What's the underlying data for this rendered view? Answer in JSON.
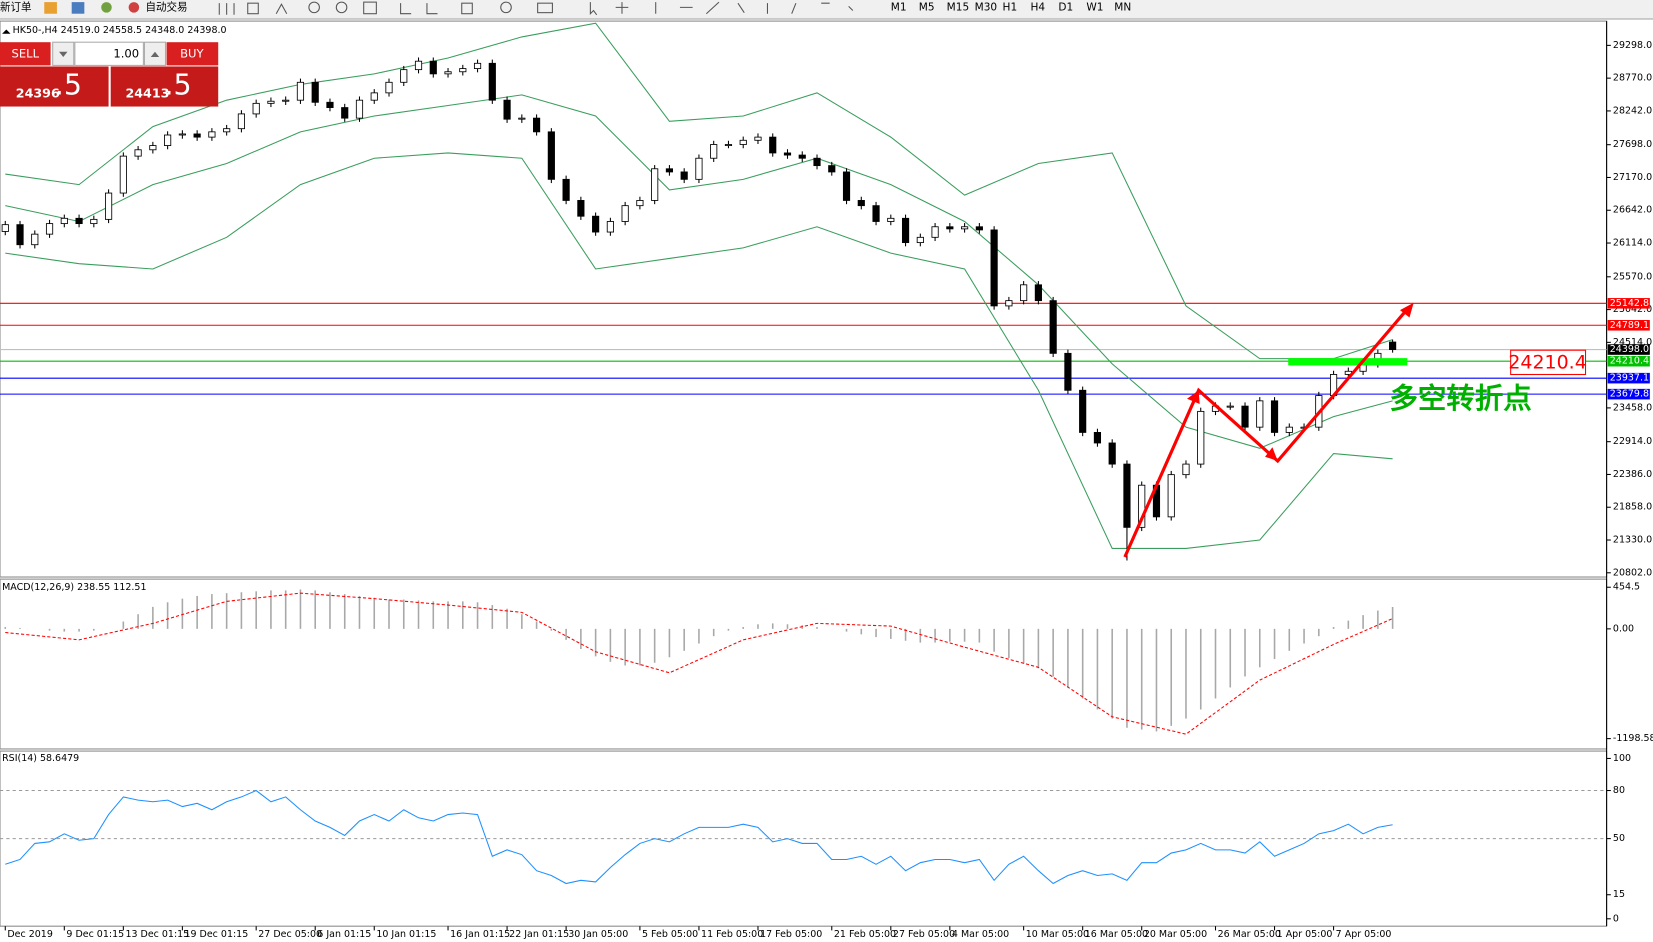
{
  "toolbar": {
    "items": [
      "新订单",
      "自动交易"
    ],
    "timeframes": [
      "M1",
      "M5",
      "M15",
      "M30",
      "H1",
      "H4",
      "D1",
      "W1",
      "MN"
    ]
  },
  "trade_panel": {
    "sell": "SELL",
    "buy": "BUY",
    "lot": "1.00",
    "sell_price": "24396",
    "sell_digits": ".5",
    "buy_price": "24413",
    "buy_digits": ".5"
  },
  "chart_data": [
    {
      "type": "candlestick",
      "title": "HK50-,H4 24519.0 24558.5 24348.0 24398.0",
      "categories": [
        "Dec 2019",
        null,
        null,
        null,
        "9 Dec 01:15",
        null,
        null,
        null,
        "13 Dec 01:15",
        null,
        null,
        null,
        "19 Dec 01:15",
        null,
        null,
        null,
        null,
        "27 Dec 05:00",
        null,
        null,
        null,
        "6 Jan 01:15",
        null,
        null,
        null,
        "10 Jan 01:15",
        null,
        null,
        null,
        null,
        "16 Jan 01:15",
        null,
        null,
        null,
        "22 Jan 01:15",
        null,
        null,
        null,
        "30 Jan 05:00",
        null,
        null,
        null,
        null,
        "5 Feb 05:00",
        null,
        null,
        null,
        "11 Feb 05:00",
        null,
        null,
        null,
        "17 Feb 05:00",
        null,
        null,
        null,
        null,
        "21 Feb 05:00",
        null,
        null,
        null,
        "27 Feb 05:00",
        null,
        null,
        null,
        "4 Mar 05:00",
        null,
        null,
        null,
        null,
        "10 Mar 05:00",
        null,
        null,
        null,
        "16 Mar 05:00",
        null,
        null,
        null,
        "20 Mar 05:00",
        null,
        null,
        null,
        null,
        "26 Mar 05:00",
        null,
        null,
        null,
        "1 Apr 05:00",
        null,
        null,
        null,
        "7 Apr 05:00",
        null,
        null,
        null,
        null
      ],
      "open": [
        26300,
        26410,
        26087,
        26257,
        26427,
        26512,
        26427,
        26495,
        26919,
        27514,
        27616,
        27684,
        27854,
        27871,
        27820,
        27905,
        27956,
        28194,
        28364,
        28398,
        28415,
        28703,
        28381,
        28296,
        28126,
        28415,
        28533,
        28703,
        28907,
        29043,
        28839,
        28873,
        28924,
        29009,
        28415,
        28109,
        28126,
        27905,
        27140,
        26800,
        26546,
        26291,
        26461,
        26716,
        26800,
        27310,
        27259,
        27140,
        27480,
        27701,
        27701,
        27769,
        27820,
        27565,
        27531,
        27480,
        27361,
        27259,
        26800,
        26716,
        26461,
        26512,
        26121,
        26206,
        26376,
        26342,
        26376,
        26325,
        25101,
        25186,
        25441,
        25186,
        24337,
        23742,
        23063,
        22893,
        22553,
        21534,
        22213,
        21703,
        22383,
        22553,
        23402,
        23487,
        23487,
        23148,
        23572,
        23063,
        23148,
        23148,
        23657,
        23997,
        24048,
        24167,
        24519
      ],
      "high": [
        26470,
        26470,
        26317,
        26487,
        26572,
        26572,
        26555,
        26979,
        27574,
        27676,
        27744,
        27914,
        27931,
        27931,
        27965,
        28016,
        28254,
        28424,
        28458,
        28475,
        28763,
        28763,
        28441,
        28356,
        28475,
        28593,
        28763,
        28967,
        29103,
        29103,
        28933,
        28984,
        29069,
        29069,
        28475,
        28186,
        28186,
        27965,
        27200,
        26860,
        26606,
        26521,
        26776,
        26860,
        27370,
        27370,
        27319,
        27540,
        27761,
        27761,
        27829,
        27880,
        27880,
        27625,
        27591,
        27540,
        27421,
        27319,
        26860,
        26776,
        26572,
        26572,
        26266,
        26436,
        26436,
        26436,
        26436,
        26385,
        25246,
        25501,
        25501,
        25246,
        24397,
        23802,
        23123,
        22953,
        22613,
        22273,
        22273,
        22443,
        22613,
        23462,
        23547,
        23547,
        23547,
        23632,
        23632,
        23208,
        23208,
        23717,
        24057,
        24108,
        24227,
        24397,
        24558.5
      ],
      "low": [
        26240,
        26027,
        26027,
        26197,
        26367,
        26367,
        26367,
        26435,
        26859,
        27454,
        27556,
        27624,
        27794,
        27760,
        27760,
        27845,
        27896,
        28134,
        28304,
        28338,
        28355,
        28321,
        28236,
        28066,
        28066,
        28355,
        28473,
        28643,
        28847,
        28779,
        28779,
        28813,
        28864,
        28355,
        28049,
        28049,
        27845,
        27080,
        26740,
        26486,
        26231,
        26231,
        26401,
        26656,
        26740,
        27199,
        27080,
        27080,
        27420,
        27641,
        27641,
        27709,
        27505,
        27471,
        27420,
        27301,
        27199,
        26740,
        26656,
        26401,
        26401,
        26061,
        26061,
        26146,
        26282,
        26282,
        26265,
        25041,
        25041,
        25126,
        25126,
        24277,
        23682,
        23003,
        22833,
        22493,
        21000,
        21474,
        21643,
        21643,
        22323,
        22493,
        23342,
        23427,
        23088,
        23088,
        23003,
        23003,
        23088,
        23088,
        23597,
        23937,
        23988,
        24107,
        24348
      ],
      "close": [
        26410,
        26087,
        26257,
        26427,
        26512,
        26427,
        26495,
        26919,
        27514,
        27616,
        27684,
        27854,
        27871,
        27820,
        27905,
        27956,
        28194,
        28364,
        28398,
        28415,
        28703,
        28381,
        28296,
        28126,
        28415,
        28533,
        28703,
        28907,
        29043,
        28839,
        28873,
        28924,
        29009,
        28415,
        28109,
        28126,
        27905,
        27140,
        26800,
        26546,
        26291,
        26461,
        26716,
        26800,
        27310,
        27259,
        27140,
        27480,
        27701,
        27701,
        27769,
        27820,
        27565,
        27531,
        27480,
        27361,
        27259,
        26800,
        26716,
        26461,
        26512,
        26121,
        26206,
        26376,
        26342,
        26376,
        26325,
        25101,
        25186,
        25441,
        25186,
        24337,
        23742,
        23063,
        22893,
        22553,
        21534,
        22213,
        21703,
        22383,
        22553,
        23402,
        23487,
        23487,
        23148,
        23572,
        23063,
        23148,
        23148,
        23657,
        23997,
        24048,
        24167,
        24337,
        24398
      ],
      "up_color": "#ffffff",
      "down_color": "#000000",
      "bands": [
        {
          "color": "#3a9d5d",
          "x": [
            0,
            5,
            10,
            15,
            20,
            25,
            30,
            35,
            40,
            45,
            50,
            55,
            60,
            65,
            70,
            75,
            80,
            85,
            90,
            94
          ],
          "values": [
            27225,
            27055,
            27990,
            28415,
            28669,
            28839,
            29094,
            29434,
            29655,
            28075,
            28160,
            28533,
            27820,
            26886,
            27395,
            27565,
            25101,
            24252,
            24252,
            24558
          ]
        },
        {
          "color": "#3a9d5d",
          "x": [
            0,
            5,
            10,
            15,
            20,
            25,
            30,
            35,
            40,
            45,
            50,
            55,
            60,
            65,
            70,
            75,
            80,
            85,
            90,
            94
          ],
          "values": [
            26716,
            26461,
            27055,
            27395,
            27905,
            28160,
            28330,
            28500,
            28160,
            26970,
            27140,
            27480,
            27055,
            26461,
            25441,
            24167,
            23148,
            22808,
            23317,
            23572
          ]
        },
        {
          "color": "#3a9d5d",
          "x": [
            0,
            5,
            10,
            15,
            20,
            25,
            30,
            35,
            40,
            45,
            50,
            55,
            60,
            65,
            70,
            75,
            80,
            85,
            90,
            94
          ],
          "values": [
            25951,
            25781,
            25696,
            26206,
            27055,
            27480,
            27565,
            27480,
            25696,
            25866,
            26036,
            26376,
            25951,
            25696,
            23742,
            21194,
            21194,
            21330,
            22723,
            22638
          ]
        }
      ],
      "levels": [
        {
          "value": 25142.8,
          "color": "#ff0000"
        },
        {
          "value": 24789.1,
          "color": "#ff0000"
        },
        {
          "value": 24398,
          "label": "24398.0",
          "color": "#000000",
          "line_color": "#c0c0c0"
        },
        {
          "value": 24210.4,
          "color": "#00c000"
        },
        {
          "value": 23937.1,
          "color": "#0000ff"
        },
        {
          "value": 23679.8,
          "color": "#0000ff"
        }
      ],
      "annotations": [
        "24210.4",
        "多空转折点"
      ],
      "ylim": [
        20734,
        29655
      ],
      "yticks": [
        {
          "value": 29298,
          "label": "29298.0"
        },
        {
          "value": 28770,
          "label": "28770.0"
        },
        {
          "value": 28242,
          "label": "28242.0"
        },
        {
          "value": 27698,
          "label": "27698.0"
        },
        {
          "value": 27170,
          "label": "27170.0"
        },
        {
          "value": 26642,
          "label": "26642.0"
        },
        {
          "value": 26114,
          "label": "26114.0"
        },
        {
          "value": 25570,
          "label": "25570.0"
        },
        {
          "value": 25042,
          "label": "25042.0"
        },
        {
          "value": 24514,
          "label": "24514.0"
        },
        {
          "value": 23458,
          "label": "23458.0"
        },
        {
          "value": 22914,
          "label": "22914.0"
        },
        {
          "value": 22386,
          "label": "22386.0"
        },
        {
          "value": 21858,
          "label": "21858.0"
        },
        {
          "value": 21330,
          "label": "21330.0"
        },
        {
          "value": 20802,
          "label": "20802.0"
        }
      ]
    },
    {
      "type": "macd",
      "title": "MACD(12,26,9) 238.55 112.51",
      "histogram": {
        "color": "#a8a8a8",
        "values": [
          20,
          10,
          0,
          -20,
          -30,
          -30,
          -20,
          0,
          80,
          160,
          240,
          290,
          330,
          360,
          380,
          390,
          400,
          410,
          420,
          420,
          430,
          420,
          400,
          380,
          360,
          340,
          320,
          320,
          310,
          300,
          300,
          300,
          290,
          260,
          220,
          160,
          80,
          -20,
          -120,
          -220,
          -300,
          -360,
          -400,
          -400,
          -370,
          -310,
          -240,
          -160,
          -80,
          -20,
          20,
          50,
          60,
          50,
          40,
          20,
          0,
          -30,
          -60,
          -90,
          -110,
          -130,
          -150,
          -150,
          -140,
          -140,
          -150,
          -250,
          -320,
          -380,
          -430,
          -520,
          -640,
          -760,
          -880,
          -980,
          -1080,
          -1100,
          -1120,
          -1060,
          -980,
          -880,
          -760,
          -640,
          -520,
          -420,
          -330,
          -240,
          -160,
          -80,
          20,
          90,
          150,
          200,
          238.55
        ]
      },
      "signal": {
        "color": "#ff0000",
        "x": [
          0,
          5,
          10,
          15,
          20,
          25,
          30,
          35,
          40,
          45,
          50,
          55,
          60,
          65,
          70,
          75,
          80,
          85,
          90,
          94
        ],
        "values": [
          -40,
          -120,
          60,
          300,
          390,
          330,
          260,
          180,
          -250,
          -480,
          -120,
          60,
          30,
          -200,
          -420,
          -960,
          -1150,
          -560,
          -170,
          112.51
        ]
      },
      "ylim": [
        -1300,
        520
      ],
      "yticks": [
        454.5,
        {
          "value": 0,
          "label": "0.00"
        },
        -1198.58
      ]
    },
    {
      "type": "rsi",
      "title": "RSI(14) 58.6479",
      "color": "#1e90ff",
      "values": [
        34,
        37,
        47,
        48,
        53,
        49,
        50,
        65,
        76,
        74,
        73,
        74,
        70,
        72,
        68,
        73,
        76,
        80,
        73,
        76,
        68,
        61,
        57,
        52,
        61,
        65,
        61,
        68,
        63,
        61,
        65,
        66,
        65,
        39,
        43,
        40,
        30,
        27,
        22,
        24,
        23,
        32,
        40,
        47,
        50,
        48,
        53,
        57,
        57,
        57,
        59,
        57,
        48,
        50,
        47,
        47,
        37,
        37,
        39,
        34,
        39,
        30,
        35,
        37,
        37,
        35,
        37,
        24,
        34,
        39,
        30,
        22,
        27,
        30,
        27,
        28,
        24,
        35,
        35,
        41,
        43,
        47,
        43,
        43,
        41,
        48,
        39,
        43,
        47,
        53,
        55,
        59,
        53,
        57,
        58.6479
      ],
      "levels": [
        80,
        50
      ],
      "ylim": [
        0,
        100
      ],
      "yticks": [
        100,
        80,
        50,
        15,
        0
      ]
    }
  ]
}
